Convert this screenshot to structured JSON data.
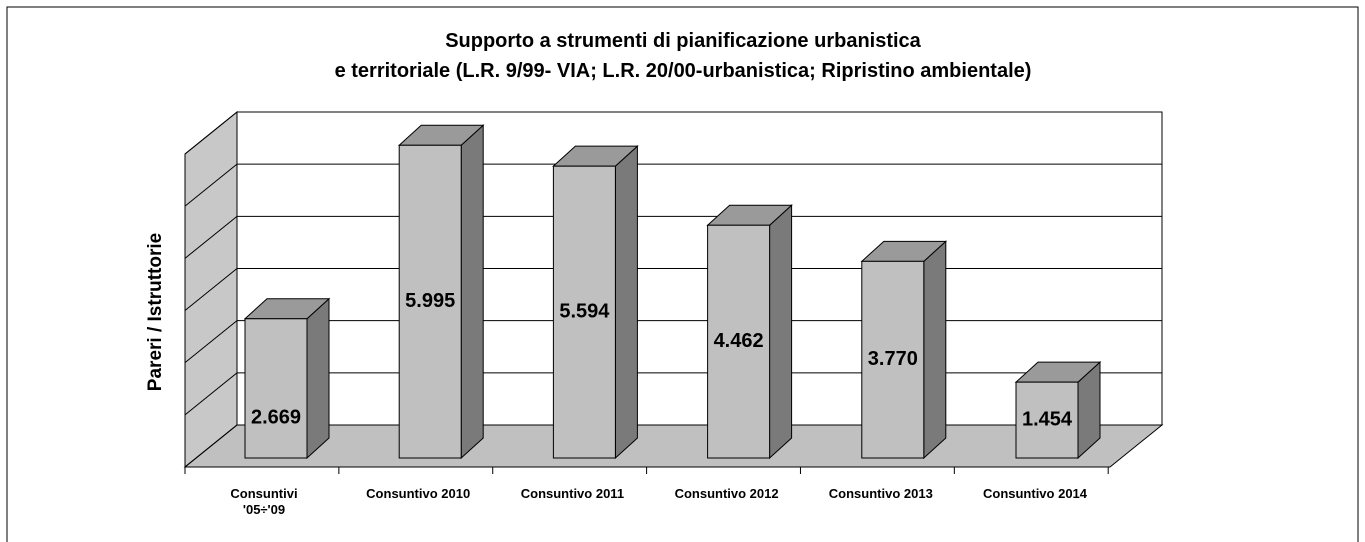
{
  "chart_data": {
    "type": "bar3d",
    "title": "Supporto a strumenti di pianificazione urbanistica\ne territoriale (L.R. 9/99- VIA; L.R. 20/00-urbanistica; Ripristino ambientale)",
    "y_label": "Pareri / Istruttorie",
    "categories": [
      "Consuntivi\n'05÷'09",
      "Consuntivo 2010",
      "Consuntivo 2011",
      "Consuntivo 2012",
      "Consuntivo 2013",
      "Consuntivo 2014"
    ],
    "values": [
      2669,
      5995,
      5594,
      4462,
      3770,
      1454
    ],
    "value_labels": [
      "2.669",
      "5.995",
      "5.594",
      "4.462",
      "3.770",
      "1.454"
    ],
    "color": "#c0c0c0",
    "ylim": [
      0,
      6000
    ],
    "yticks": [
      0,
      1000,
      2000,
      3000,
      4000,
      5000,
      6000
    ],
    "grid": true
  }
}
